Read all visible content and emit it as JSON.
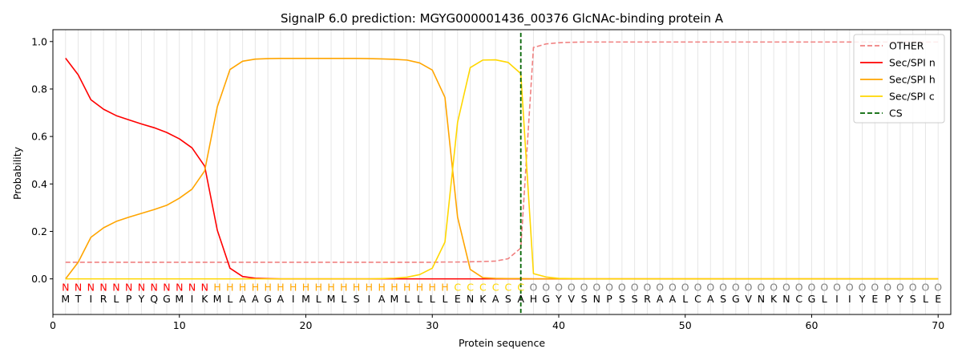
{
  "chart_data": {
    "type": "line",
    "title": "SignalP 6.0 prediction: MGYG000001436_00376 GlcNAc-binding protein A",
    "xlabel": "Protein sequence",
    "ylabel": "Probability",
    "xlim": [
      0,
      71
    ],
    "ylim": [
      -0.15,
      1.05
    ],
    "xticks": [
      0,
      10,
      20,
      30,
      40,
      50,
      60,
      70
    ],
    "yticks": [
      0.0,
      0.2,
      0.4,
      0.6,
      0.8,
      1.0
    ],
    "ytick_labels": [
      "0.0",
      "0.2",
      "0.4",
      "0.6",
      "0.8",
      "1.0"
    ],
    "grid": "vertical per residue",
    "legend_position": "top-right",
    "sequence": [
      "M",
      "T",
      "I",
      "R",
      "L",
      "P",
      "Y",
      "Q",
      "G",
      "M",
      "I",
      "K",
      "M",
      "L",
      "A",
      "A",
      "G",
      "A",
      "I",
      "M",
      "L",
      "M",
      "L",
      "S",
      "I",
      "A",
      "M",
      "L",
      "L",
      "L",
      "L",
      "E",
      "N",
      "K",
      "A",
      "S",
      "A",
      "H",
      "G",
      "Y",
      "V",
      "S",
      "N",
      "P",
      "S",
      "S",
      "R",
      "A",
      "A",
      "L",
      "C",
      "A",
      "S",
      "G",
      "V",
      "N",
      "K",
      "N",
      "C",
      "G",
      "L",
      "I",
      "I",
      "Y",
      "E",
      "P",
      "Y",
      "S",
      "L",
      "E"
    ],
    "region_labels": [
      "N",
      "N",
      "N",
      "N",
      "N",
      "N",
      "N",
      "N",
      "N",
      "N",
      "N",
      "N",
      "H",
      "H",
      "H",
      "H",
      "H",
      "H",
      "H",
      "H",
      "H",
      "H",
      "H",
      "H",
      "H",
      "H",
      "H",
      "H",
      "H",
      "H",
      "H",
      "C",
      "C",
      "C",
      "C",
      "C",
      "C",
      "O",
      "O",
      "O",
      "O",
      "O",
      "O",
      "O",
      "O",
      "O",
      "O",
      "O",
      "O",
      "O",
      "O",
      "O",
      "O",
      "O",
      "O",
      "O",
      "O",
      "O",
      "O",
      "O",
      "O",
      "O",
      "O",
      "O",
      "O",
      "O",
      "O",
      "O",
      "O",
      "O"
    ],
    "region_colors": {
      "N": "#ff0000",
      "H": "#ffa500",
      "C": "#ffd700",
      "O": "#808080"
    },
    "cleavage_site": 37,
    "series": [
      {
        "name": "OTHER",
        "color": "#f08080",
        "dash": "dashed",
        "values": [
          0.07,
          0.07,
          0.07,
          0.07,
          0.07,
          0.07,
          0.07,
          0.07,
          0.07,
          0.07,
          0.07,
          0.07,
          0.07,
          0.07,
          0.07,
          0.07,
          0.07,
          0.07,
          0.07,
          0.07,
          0.07,
          0.07,
          0.07,
          0.07,
          0.07,
          0.07,
          0.07,
          0.07,
          0.07,
          0.07,
          0.071,
          0.071,
          0.072,
          0.073,
          0.075,
          0.085,
          0.13,
          0.975,
          0.99,
          0.995,
          0.997,
          0.998,
          0.998,
          0.998,
          0.998,
          0.998,
          0.998,
          0.998,
          0.998,
          0.998,
          0.998,
          0.998,
          0.998,
          0.998,
          0.998,
          0.998,
          0.998,
          0.998,
          0.998,
          0.998,
          0.998,
          0.998,
          0.998,
          0.998,
          0.998,
          0.998,
          0.998,
          0.998,
          0.998,
          0.998
        ]
      },
      {
        "name": "Sec/SPI n",
        "color": "#ff0000",
        "dash": "solid",
        "values": [
          0.93,
          0.86,
          0.755,
          0.715,
          0.688,
          0.67,
          0.653,
          0.637,
          0.617,
          0.59,
          0.552,
          0.475,
          0.205,
          0.045,
          0.01,
          0.003,
          0.001,
          0,
          0,
          0,
          0,
          0,
          0,
          0,
          0,
          0,
          0,
          0,
          0,
          0,
          0,
          0,
          0,
          0,
          0,
          0,
          0,
          0,
          0,
          0,
          0,
          0,
          0,
          0,
          0,
          0,
          0,
          0,
          0,
          0,
          0,
          0,
          0,
          0,
          0,
          0,
          0,
          0,
          0,
          0,
          0,
          0,
          0,
          0,
          0,
          0,
          0,
          0,
          0,
          0
        ]
      },
      {
        "name": "Sec/SPI h",
        "color": "#ffa500",
        "dash": "solid",
        "values": [
          0.0,
          0.07,
          0.175,
          0.215,
          0.242,
          0.26,
          0.276,
          0.292,
          0.31,
          0.34,
          0.378,
          0.455,
          0.725,
          0.882,
          0.917,
          0.926,
          0.928,
          0.929,
          0.929,
          0.929,
          0.929,
          0.929,
          0.929,
          0.929,
          0.928,
          0.927,
          0.925,
          0.922,
          0.91,
          0.88,
          0.765,
          0.26,
          0.04,
          0.005,
          0.002,
          0.001,
          0.001,
          0,
          0,
          0,
          0,
          0,
          0,
          0,
          0,
          0,
          0,
          0,
          0,
          0,
          0,
          0,
          0,
          0,
          0,
          0,
          0,
          0,
          0,
          0,
          0,
          0,
          0,
          0,
          0,
          0,
          0,
          0,
          0,
          0
        ]
      },
      {
        "name": "Sec/SPI c",
        "color": "#ffd700",
        "dash": "solid",
        "values": [
          0,
          0,
          0,
          0,
          0,
          0,
          0,
          0,
          0,
          0,
          0,
          0,
          0,
          0,
          0,
          0,
          0,
          0,
          0,
          0,
          0,
          0,
          0,
          0,
          0,
          0.001,
          0.003,
          0.007,
          0.018,
          0.045,
          0.155,
          0.66,
          0.89,
          0.922,
          0.923,
          0.912,
          0.865,
          0.022,
          0.008,
          0.002,
          0.001,
          0,
          0,
          0,
          0,
          0,
          0,
          0,
          0,
          0,
          0,
          0,
          0,
          0,
          0,
          0,
          0,
          0,
          0,
          0,
          0,
          0,
          0,
          0,
          0,
          0,
          0,
          0,
          0,
          0
        ]
      },
      {
        "name": "CS",
        "color": "#006400",
        "dash": "dashed",
        "values": []
      }
    ]
  }
}
